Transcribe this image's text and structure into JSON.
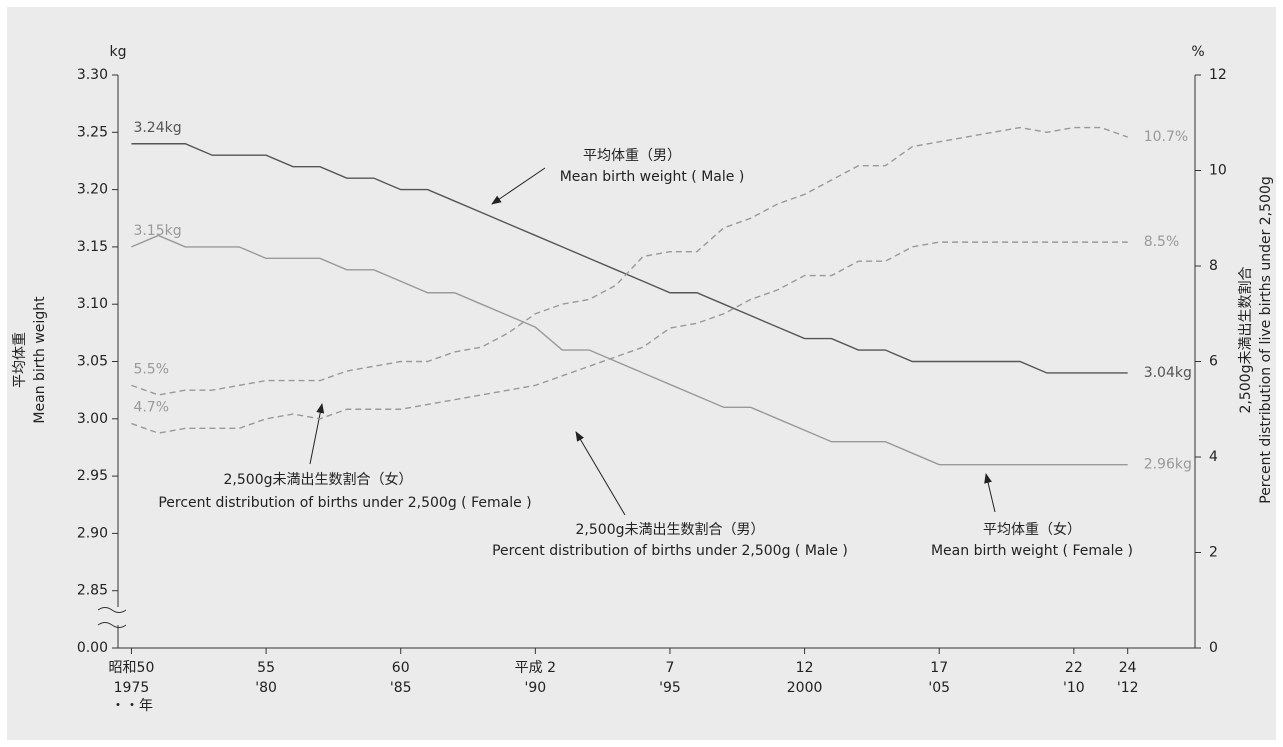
{
  "chart_data": {
    "type": "line",
    "y_unit": "kg",
    "y2_unit": "%",
    "x_unit": "・・年",
    "ylabel": [
      "平均体重",
      "Mean birth weight"
    ],
    "y2label": [
      "2,500g未満出生数割合",
      "Percent distribution of live births under 2,500g"
    ],
    "x": [
      1975,
      1976,
      1977,
      1978,
      1979,
      1980,
      1981,
      1982,
      1983,
      1984,
      1985,
      1986,
      1987,
      1988,
      1989,
      1990,
      1991,
      1992,
      1993,
      1994,
      1995,
      1996,
      1997,
      1998,
      1999,
      2000,
      2001,
      2002,
      2003,
      2004,
      2005,
      2006,
      2007,
      2008,
      2009,
      2010,
      2011,
      2012
    ],
    "xlim": [
      1974.5,
      2014.5
    ],
    "xticks": [
      {
        "value": 1975,
        "label": "1975",
        "era": "昭和50"
      },
      {
        "value": 1980,
        "label": "'80",
        "era": "55"
      },
      {
        "value": 1985,
        "label": "'85",
        "era": "60"
      },
      {
        "value": 1990,
        "label": "'90",
        "era": "平成 2"
      },
      {
        "value": 1995,
        "label": "'95",
        "era": "7"
      },
      {
        "value": 2000,
        "label": "2000",
        "era": "12"
      },
      {
        "value": 2005,
        "label": "'05",
        "era": "17"
      },
      {
        "value": 2010,
        "label": "'10",
        "era": "22"
      },
      {
        "value": 2012,
        "label": "'12",
        "era": "24"
      }
    ],
    "ylim": [
      0,
      3.3
    ],
    "y_break": [
      0,
      2.8
    ],
    "yticks": [
      {
        "value": 0,
        "label": "0.00"
      },
      2.85,
      {
        "value": 2.9,
        "label": "2.90"
      },
      2.95,
      {
        "value": 3.0,
        "label": "3.00"
      },
      3.05,
      {
        "value": 3.1,
        "label": "3.10"
      },
      3.15,
      {
        "value": 3.2,
        "label": "3.20"
      },
      3.25,
      {
        "value": 3.3,
        "label": "3.30"
      }
    ],
    "y2lim": [
      0,
      12
    ],
    "y2ticks": [
      0,
      2,
      4,
      6,
      8,
      10,
      12
    ],
    "series": [
      {
        "name": "Mean birth weight (Male)",
        "color": "#555555",
        "dash": false,
        "values": [
          3.24,
          3.24,
          3.24,
          3.23,
          3.23,
          3.23,
          3.22,
          3.22,
          3.21,
          3.21,
          3.2,
          3.2,
          3.19,
          3.18,
          3.17,
          3.16,
          3.15,
          3.14,
          3.13,
          3.12,
          3.11,
          3.11,
          3.1,
          3.09,
          3.08,
          3.07,
          3.07,
          3.06,
          3.06,
          3.05,
          3.05,
          3.05,
          3.05,
          3.05,
          3.04,
          3.04,
          3.04,
          3.04
        ],
        "value_labels": [
          "3.24kg",
          null,
          null,
          null,
          null,
          null,
          null,
          null,
          null,
          null,
          null,
          null,
          null,
          null,
          null,
          null,
          null,
          null,
          null,
          null,
          null,
          null,
          null,
          null,
          null,
          null,
          null,
          null,
          null,
          null,
          null,
          null,
          null,
          null,
          null,
          null,
          null,
          "3.04kg"
        ]
      },
      {
        "name": "Mean birth weight (Female)",
        "color": "#999999",
        "dash": false,
        "values": [
          3.15,
          3.16,
          3.15,
          3.15,
          3.15,
          3.14,
          3.14,
          3.14,
          3.13,
          3.13,
          3.12,
          3.11,
          3.11,
          3.1,
          3.09,
          3.08,
          3.06,
          3.06,
          3.05,
          3.04,
          3.03,
          3.02,
          3.01,
          3.01,
          3.0,
          2.99,
          2.98,
          2.98,
          2.98,
          2.97,
          2.96,
          2.96,
          2.96,
          2.96,
          2.96,
          2.96,
          2.96,
          2.96
        ],
        "value_labels": [
          "3.15kg",
          null,
          null,
          null,
          null,
          null,
          null,
          null,
          null,
          null,
          null,
          null,
          null,
          null,
          null,
          null,
          null,
          null,
          null,
          null,
          null,
          null,
          null,
          null,
          null,
          null,
          null,
          null,
          null,
          null,
          null,
          null,
          null,
          null,
          null,
          null,
          null,
          "2.96kg"
        ]
      },
      {
        "name": "Percent distribution of births under 2,500g (Female)",
        "color": "#999999",
        "dash": true,
        "axis": "y2",
        "values": [
          5.5,
          5.3,
          5.4,
          5.4,
          5.5,
          5.6,
          5.6,
          5.6,
          5.8,
          5.9,
          6.0,
          6.0,
          6.2,
          6.3,
          6.6,
          7.0,
          7.2,
          7.3,
          7.6,
          8.2,
          8.3,
          8.3,
          8.8,
          9.0,
          9.3,
          9.5,
          9.8,
          10.1,
          10.1,
          10.5,
          10.6,
          10.7,
          10.8,
          10.9,
          10.8,
          10.9,
          10.9,
          10.7
        ],
        "value_labels": [
          "5.5%",
          null,
          null,
          null,
          null,
          null,
          null,
          null,
          null,
          null,
          null,
          null,
          null,
          null,
          null,
          null,
          null,
          null,
          null,
          null,
          null,
          null,
          null,
          null,
          null,
          null,
          null,
          null,
          null,
          null,
          null,
          null,
          null,
          null,
          null,
          null,
          null,
          "10.7%"
        ]
      },
      {
        "name": "Percent distribution of births under 2,500g (Male)",
        "color": "#999999",
        "dash": true,
        "axis": "y2",
        "values": [
          4.7,
          4.5,
          4.6,
          4.6,
          4.6,
          4.8,
          4.9,
          4.8,
          5.0,
          5.0,
          5.0,
          5.1,
          5.2,
          5.3,
          5.4,
          5.5,
          5.7,
          5.9,
          6.1,
          6.3,
          6.7,
          6.8,
          7.0,
          7.3,
          7.5,
          7.8,
          7.8,
          8.1,
          8.1,
          8.4,
          8.5,
          8.5,
          8.5,
          8.5,
          8.5,
          8.5,
          8.5,
          8.5
        ],
        "value_labels": [
          "4.7%",
          null,
          null,
          null,
          null,
          null,
          null,
          null,
          null,
          null,
          null,
          null,
          null,
          null,
          null,
          null,
          null,
          null,
          null,
          null,
          null,
          null,
          null,
          null,
          null,
          null,
          null,
          null,
          null,
          null,
          null,
          null,
          null,
          null,
          null,
          null,
          null,
          "8.5%"
        ]
      }
    ],
    "annotations": [
      [
        "平均体重（男）",
        "Mean birth weight ( Male )"
      ],
      [
        "2,500g未満出生数割合（女）",
        "Percent distribution of births under 2,500g ( Female )"
      ],
      [
        "2,500g未満出生数割合（男）",
        "Percent distribution of births under 2,500g ( Male )"
      ],
      [
        "平均体重（女）",
        "Mean birth weight ( Female )"
      ]
    ]
  }
}
